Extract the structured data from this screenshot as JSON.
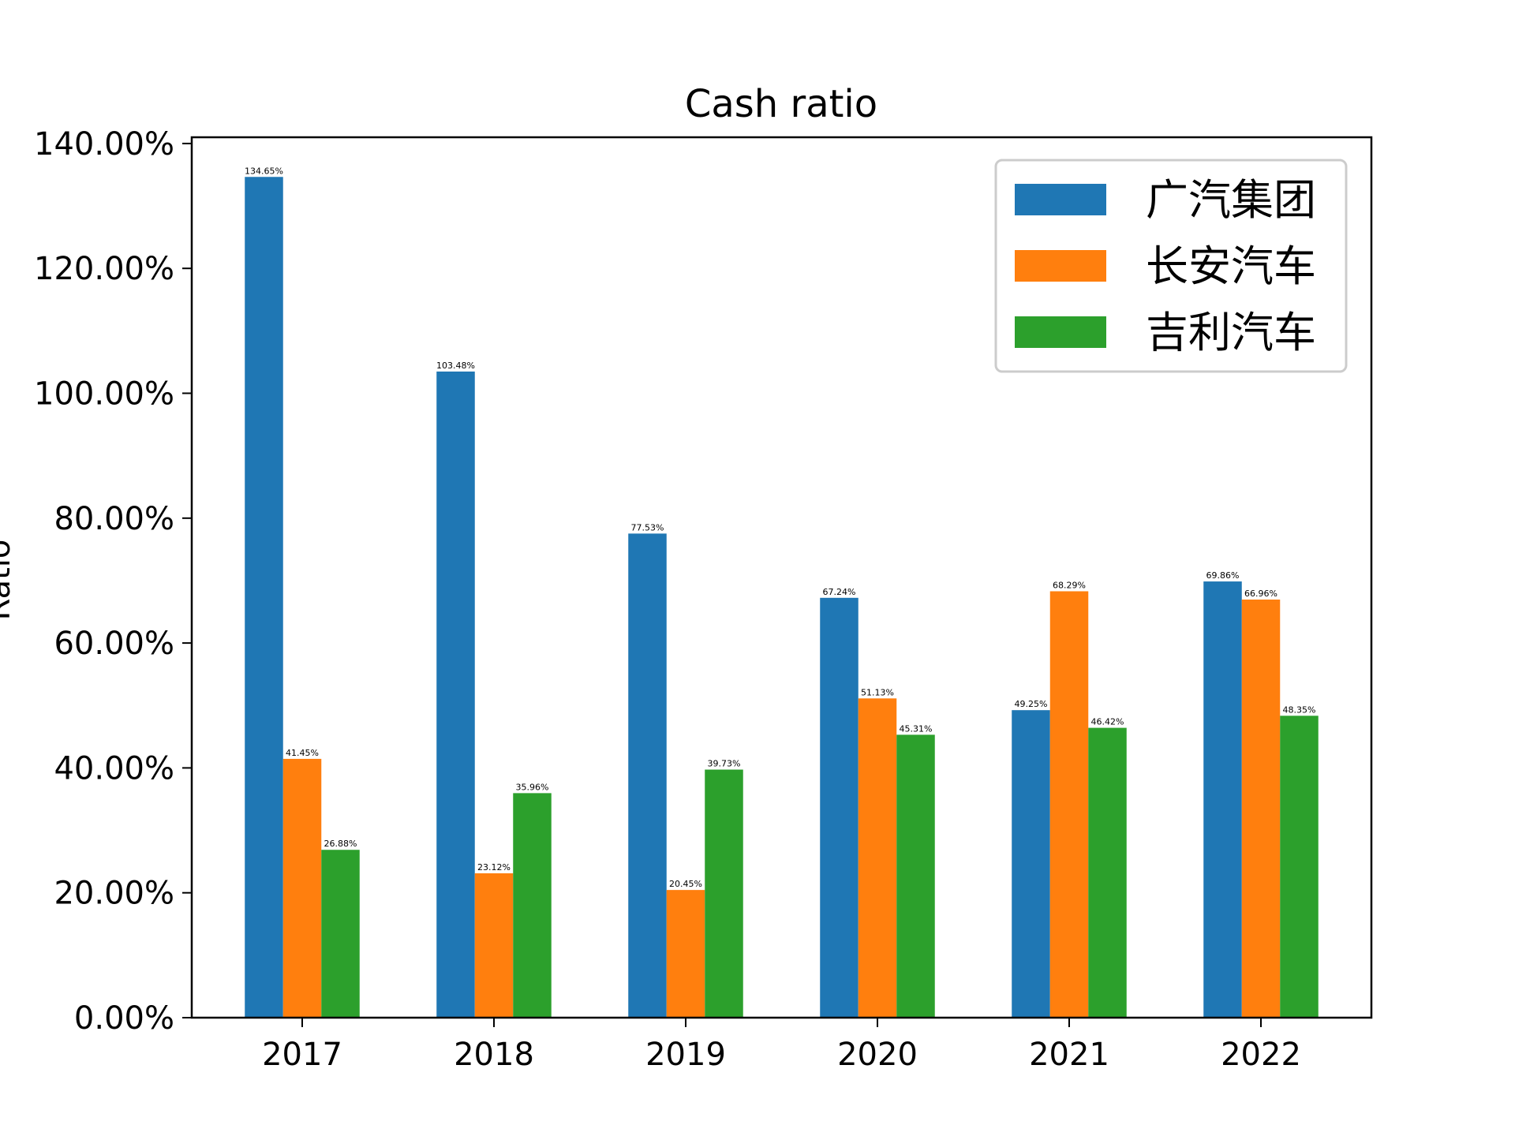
{
  "chart_data": {
    "type": "bar",
    "title": "Cash ratio",
    "xlabel": "",
    "ylabel": "Ratio",
    "categories": [
      "2017",
      "2018",
      "2019",
      "2020",
      "2021",
      "2022"
    ],
    "series": [
      {
        "name": "广汽集团",
        "color": "#1f77b4",
        "values": [
          134.65,
          103.48,
          77.53,
          67.24,
          49.25,
          69.86
        ],
        "labels": [
          "134.65%",
          "103.48%",
          "77.53%",
          "67.24%",
          "49.25%",
          "69.86%"
        ]
      },
      {
        "name": "长安汽车",
        "color": "#ff7f0e",
        "values": [
          41.45,
          23.12,
          20.45,
          51.13,
          68.29,
          66.96
        ],
        "labels": [
          "41.45%",
          "23.12%",
          "20.45%",
          "51.13%",
          "68.29%",
          "66.96%"
        ]
      },
      {
        "name": "吉利汽车",
        "color": "#2ca02c",
        "values": [
          26.88,
          35.96,
          39.73,
          45.31,
          46.42,
          48.35
        ],
        "labels": [
          "26.88%",
          "35.96%",
          "39.73%",
          "45.31%",
          "46.42%",
          "48.35%"
        ]
      }
    ],
    "ylim": [
      0,
      141
    ],
    "yticks": [
      0,
      20,
      40,
      60,
      80,
      100,
      120,
      140
    ],
    "ytick_labels": [
      "0.00%",
      "20.00%",
      "40.00%",
      "60.00%",
      "80.00%",
      "100.00%",
      "120.00%",
      "140.00%"
    ],
    "grid": false,
    "legend_position": "top-right"
  }
}
